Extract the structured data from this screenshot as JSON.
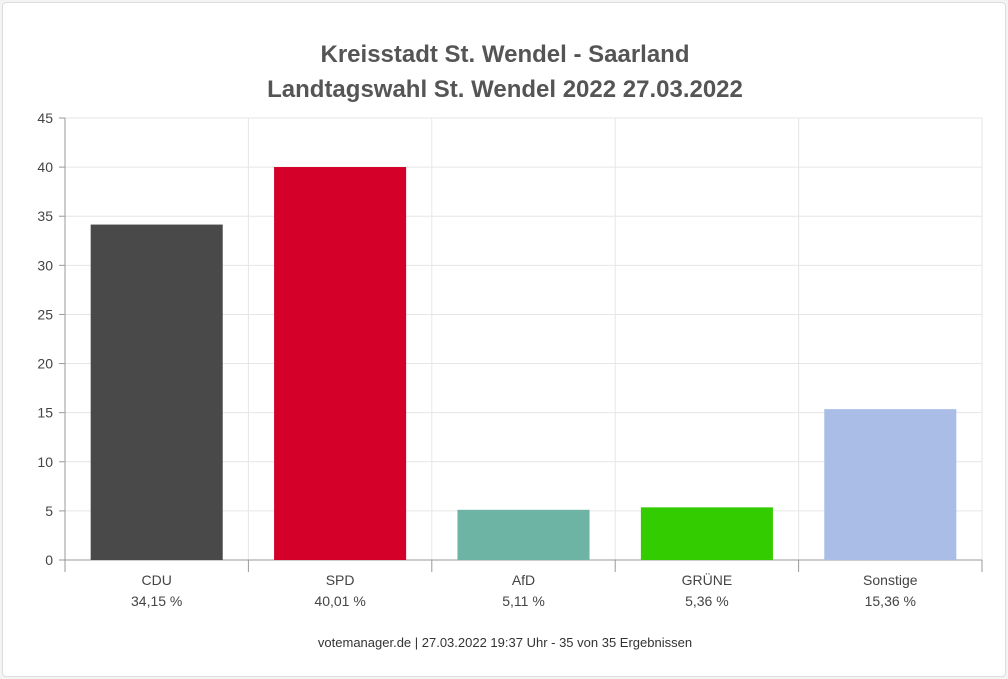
{
  "chart_data": {
    "type": "bar",
    "title": "Kreisstadt St. Wendel - Saarland",
    "subtitle": "Landtagswahl St. Wendel 2022 27.03.2022",
    "categories": [
      "CDU",
      "SPD",
      "AfD",
      "GRÜNE",
      "Sonstige"
    ],
    "values": [
      34.15,
      40.01,
      5.11,
      5.36,
      15.36
    ],
    "value_labels": [
      "34,15 %",
      "40,01 %",
      "5,11 %",
      "5,36 %",
      "15,36 %"
    ],
    "colors": [
      "#494949",
      "#d50029",
      "#6eb4a4",
      "#33cc00",
      "#a9bde6"
    ],
    "ylim": [
      0,
      45
    ],
    "yticks": [
      0,
      5,
      10,
      15,
      20,
      25,
      30,
      35,
      40,
      45
    ],
    "grid": true,
    "legend": "none",
    "footer": "votemanager.de | 27.03.2022 19:37 Uhr - 35 von 35 Ergebnissen"
  }
}
